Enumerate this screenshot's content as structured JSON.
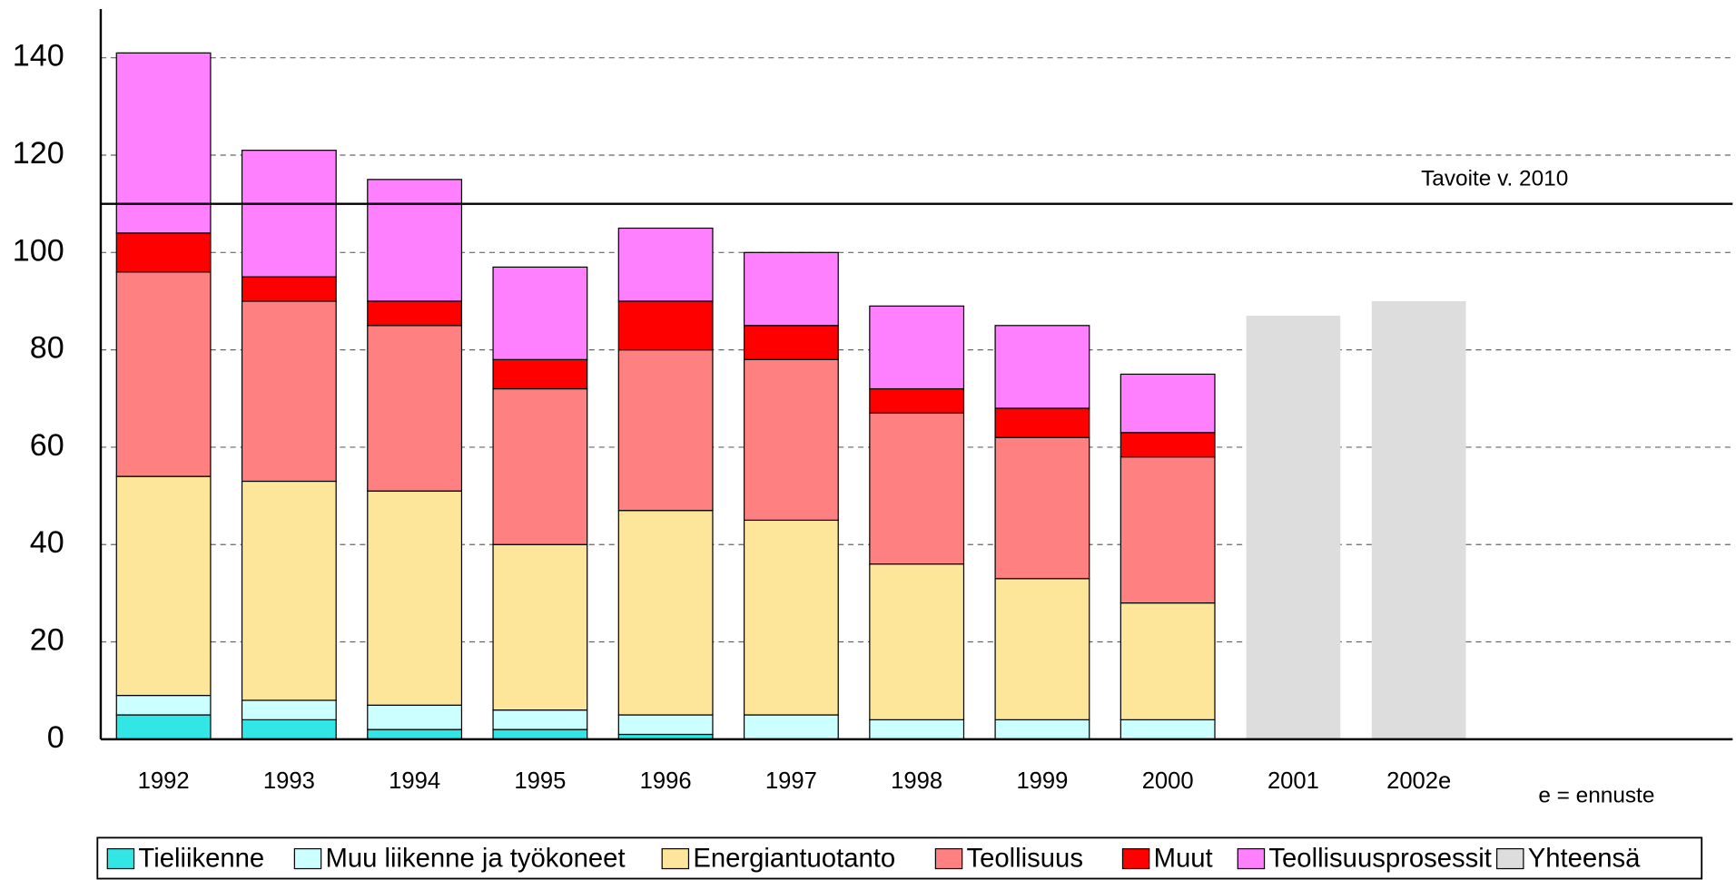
{
  "chart_data": {
    "type": "stacked_bar",
    "categories": [
      "1992",
      "1993",
      "1994",
      "1995",
      "1996",
      "1997",
      "1998",
      "1999",
      "2000",
      "2001",
      "2002e"
    ],
    "series": [
      {
        "name": "Tieliikenne",
        "color": "#33e6e6",
        "edgecolor": "#000000",
        "values": [
          5,
          4,
          2,
          2,
          1,
          0,
          0,
          0,
          0,
          null,
          null
        ]
      },
      {
        "name": "Muu liikenne ja työkoneet",
        "color": "#ccffff",
        "edgecolor": "#000000",
        "values": [
          4,
          4,
          5,
          4,
          4,
          5,
          4,
          4,
          4,
          null,
          null
        ]
      },
      {
        "name": "Energiantuotanto",
        "color": "#fde699",
        "edgecolor": "#000000",
        "values": [
          45,
          45,
          44,
          34,
          42,
          40,
          32,
          29,
          24,
          null,
          null
        ]
      },
      {
        "name": "Teollisuus",
        "color": "#ff8080",
        "edgecolor": "#000000",
        "values": [
          42,
          37,
          34,
          32,
          33,
          33,
          31,
          29,
          30,
          null,
          null
        ]
      },
      {
        "name": "Muut",
        "color": "#ff0000",
        "edgecolor": "#000000",
        "values": [
          8,
          5,
          5,
          6,
          10,
          7,
          5,
          6,
          5,
          null,
          null
        ]
      },
      {
        "name": "Teollisuusprosessit",
        "color": "#ff80ff",
        "edgecolor": "#000000",
        "values": [
          37,
          26,
          25,
          19,
          15,
          15,
          17,
          17,
          12,
          null,
          null
        ]
      },
      {
        "name": "Yhteensä",
        "color": "#dddddd",
        "edgecolor": "none",
        "values": [
          null,
          null,
          null,
          null,
          null,
          null,
          null,
          null,
          null,
          87,
          90
        ]
      }
    ],
    "ylim": [
      0,
      150
    ],
    "yticks": [
      0,
      20,
      40,
      60,
      80,
      100,
      120,
      140
    ],
    "grid": true,
    "target": {
      "label": "Tavoite v. 2010",
      "value": 110
    },
    "annotation": "e = ennuste",
    "legend": "bottom"
  }
}
